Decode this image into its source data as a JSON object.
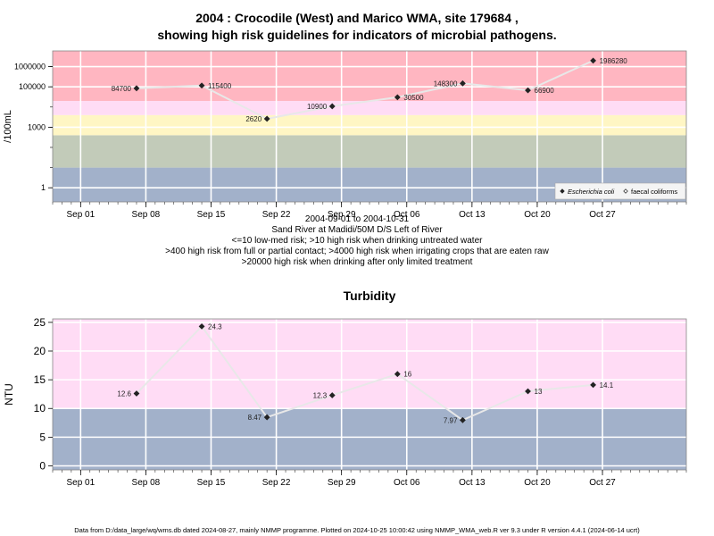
{
  "title_line1": "2004 : Crocodile (West) and Marico WMA, site 179684 ,",
  "title_line2": "showing high risk guidelines for indicators of microbial pathogens.",
  "subtitle_lines": [
    "2004-09-01 to 2004-10-31",
    "Sand River at Madidi/50M D/S Left of River",
    "<=10 low-med risk; >10 high risk when drinking untreated water",
    ">400 high risk from full or partial contact; >4000 high risk when irrigating crops that are eaten raw",
    ">20000 high risk when drinking after only limited treatment"
  ],
  "footer": "Data from D:/data_large/wq/wms.db dated 2024-08-27, mainly NMMP programme. Plotted on 2024-10-25 10:00:42 using NMMP_WMA_web.R ver 9.3 under R version 4.4.1 (2024-06-14 ucrt)",
  "colors": {
    "band_red": "#ffb6c1",
    "band_pink": "#ffdcf5",
    "band_yellow": "#fff6c4",
    "band_gray": "#c2cbb9",
    "band_blue": "#a2b1ca",
    "line": "#e8e8e8",
    "point": "#222222"
  },
  "chart_data": [
    {
      "type": "line",
      "ylabel": "/100mL",
      "xlabel": "",
      "log_y": true,
      "x_range": [
        "2004-08-29",
        "2004-11-05"
      ],
      "x_ticks": [
        {
          "date": "2004-09-01",
          "label": "Sep 01"
        },
        {
          "date": "2004-09-08",
          "label": "Sep 08"
        },
        {
          "date": "2004-09-15",
          "label": "Sep 15"
        },
        {
          "date": "2004-09-22",
          "label": "Sep 22"
        },
        {
          "date": "2004-09-29",
          "label": "Sep 29"
        },
        {
          "date": "2004-10-06",
          "label": "Oct 06"
        },
        {
          "date": "2004-10-13",
          "label": "Oct 13"
        },
        {
          "date": "2004-10-20",
          "label": "Oct 20"
        },
        {
          "date": "2004-10-27",
          "label": "Oct 27"
        }
      ],
      "y_ticks": [
        {
          "value": 1,
          "label": "1"
        },
        {
          "value": 1000,
          "label": "1000"
        },
        {
          "value": 100000,
          "label": "100000"
        },
        {
          "value": 1000000,
          "label": "1000000"
        }
      ],
      "ylim": [
        0.2,
        6000000
      ],
      "bands": [
        {
          "from": 0.2,
          "to": 10,
          "color": "band_blue"
        },
        {
          "from": 10,
          "to": 400,
          "color": "band_gray"
        },
        {
          "from": 400,
          "to": 4000,
          "color": "band_yellow"
        },
        {
          "from": 4000,
          "to": 20000,
          "color": "band_pink"
        },
        {
          "from": 20000,
          "to": 6000000,
          "color": "band_red"
        }
      ],
      "series": [
        {
          "name": "Escherichia coli",
          "points": [
            {
              "date": "2004-09-07",
              "value": 84700,
              "label": "84700",
              "side": "left"
            },
            {
              "date": "2004-09-14",
              "value": 115400,
              "label": "115400",
              "side": "right"
            },
            {
              "date": "2004-09-21",
              "value": 2620,
              "label": "2620",
              "side": "left"
            },
            {
              "date": "2004-09-28",
              "value": 10900,
              "label": "10900",
              "side": "left"
            },
            {
              "date": "2004-10-05",
              "value": 30500,
              "label": "30500",
              "side": "right"
            },
            {
              "date": "2004-10-12",
              "value": 148300,
              "label": "148300",
              "side": "left"
            },
            {
              "date": "2004-10-19",
              "value": 66900,
              "label": "66900",
              "side": "right"
            },
            {
              "date": "2004-10-26",
              "value": 1986280,
              "label": "1986280",
              "side": "right"
            }
          ]
        }
      ],
      "legend": {
        "position": "bottom-right",
        "items": [
          {
            "label": "Escherichia coli",
            "symbol": "diamond",
            "italic": true
          },
          {
            "label": "faecal coliforms",
            "symbol": "open-diamond",
            "italic": false
          }
        ]
      }
    },
    {
      "type": "line",
      "title": "Turbidity",
      "ylabel": "NTU",
      "xlabel": "",
      "log_y": false,
      "x_range": [
        "2004-08-29",
        "2004-11-05"
      ],
      "x_ticks": [
        {
          "date": "2004-09-01",
          "label": "Sep 01"
        },
        {
          "date": "2004-09-08",
          "label": "Sep 08"
        },
        {
          "date": "2004-09-15",
          "label": "Sep 15"
        },
        {
          "date": "2004-09-22",
          "label": "Sep 22"
        },
        {
          "date": "2004-09-29",
          "label": "Sep 29"
        },
        {
          "date": "2004-10-06",
          "label": "Oct 06"
        },
        {
          "date": "2004-10-13",
          "label": "Oct 13"
        },
        {
          "date": "2004-10-20",
          "label": "Oct 20"
        },
        {
          "date": "2004-10-27",
          "label": "Oct 27"
        }
      ],
      "y_ticks": [
        {
          "value": 0,
          "label": "0"
        },
        {
          "value": 5,
          "label": "5"
        },
        {
          "value": 10,
          "label": "10"
        },
        {
          "value": 15,
          "label": "15"
        },
        {
          "value": 20,
          "label": "20"
        },
        {
          "value": 25,
          "label": "25"
        }
      ],
      "ylim": [
        -0.7,
        25.6
      ],
      "bands": [
        {
          "from": -0.7,
          "to": 10,
          "color": "band_blue"
        },
        {
          "from": 10,
          "to": 25.6,
          "color": "band_pink"
        }
      ],
      "series": [
        {
          "points": [
            {
              "date": "2004-09-07",
              "value": 12.6,
              "label": "12.6",
              "side": "left"
            },
            {
              "date": "2004-09-14",
              "value": 24.3,
              "label": "24.3",
              "side": "right"
            },
            {
              "date": "2004-09-21",
              "value": 8.47,
              "label": "8.47",
              "side": "left"
            },
            {
              "date": "2004-09-28",
              "value": 12.3,
              "label": "12.3",
              "side": "left"
            },
            {
              "date": "2004-10-05",
              "value": 16,
              "label": "16",
              "side": "right"
            },
            {
              "date": "2004-10-12",
              "value": 7.97,
              "label": "7.97",
              "side": "left"
            },
            {
              "date": "2004-10-19",
              "value": 13,
              "label": "13",
              "side": "right"
            },
            {
              "date": "2004-10-26",
              "value": 14.1,
              "label": "14.1",
              "side": "right"
            }
          ]
        }
      ]
    }
  ]
}
